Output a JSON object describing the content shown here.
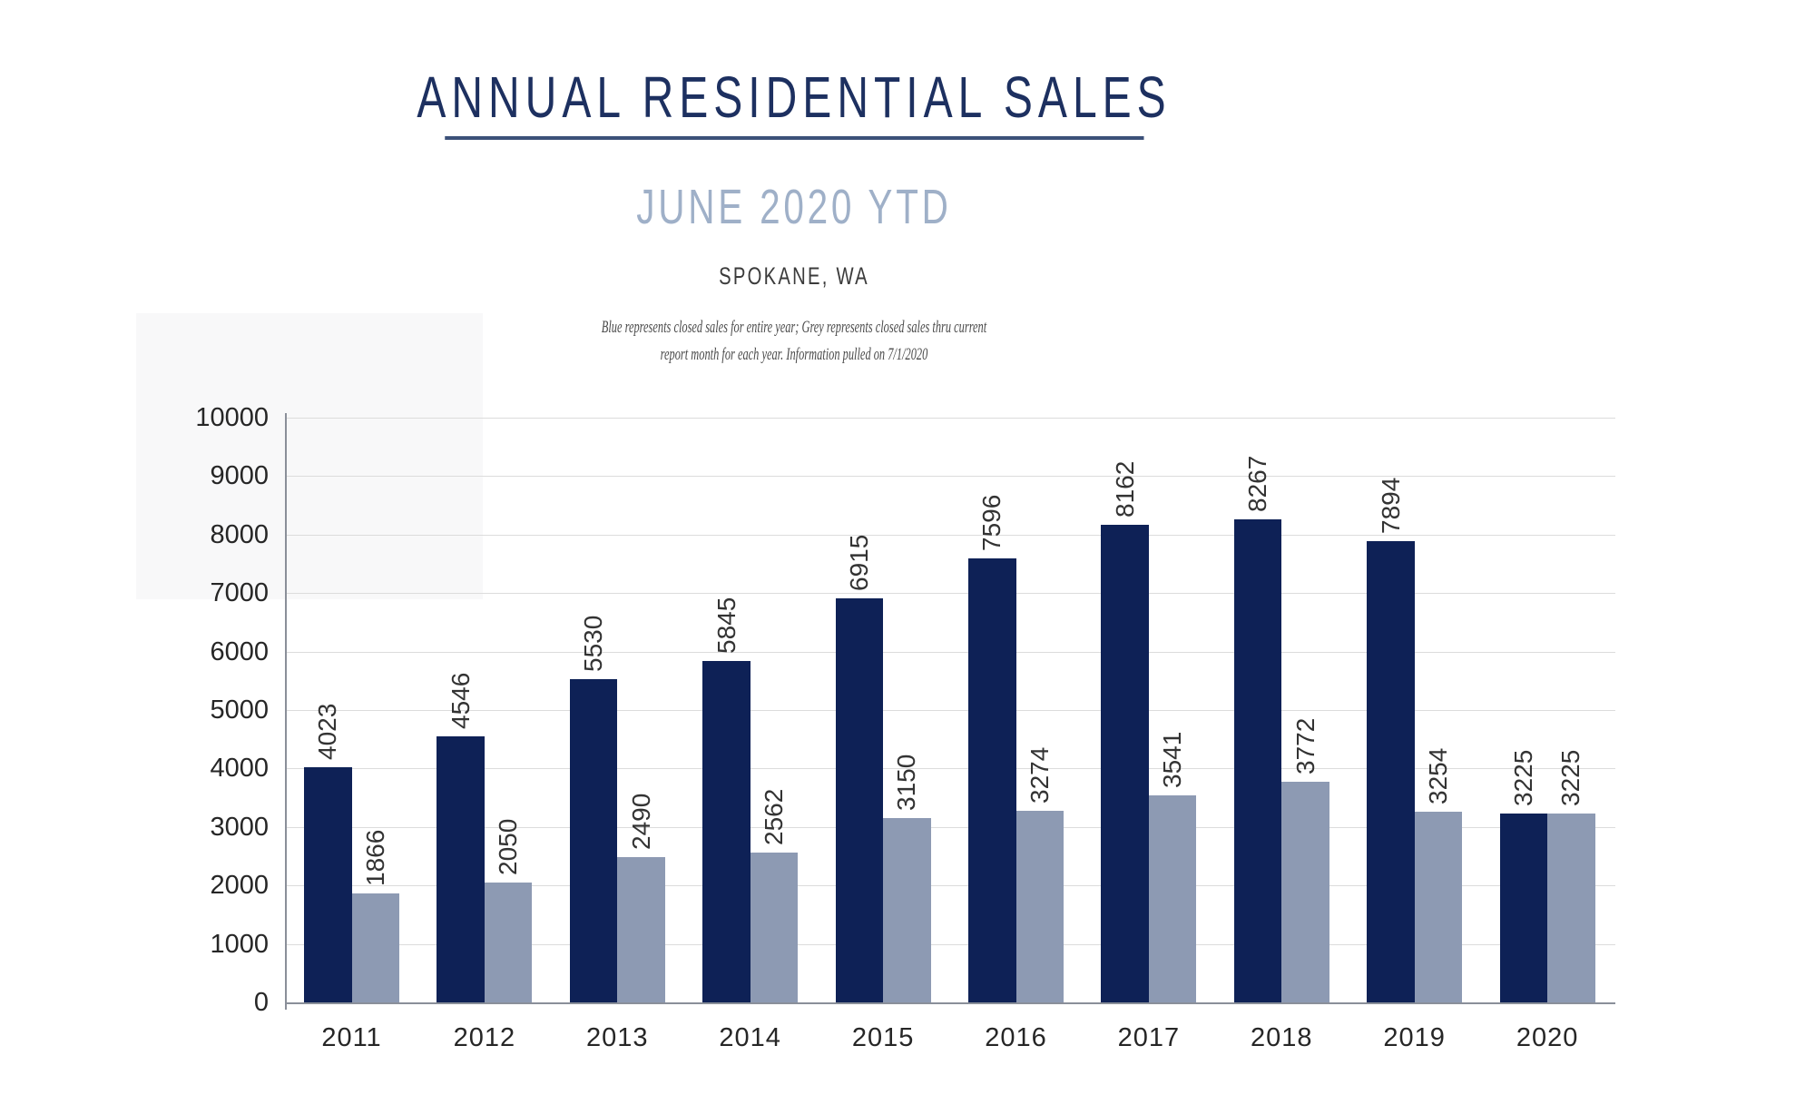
{
  "header": {
    "title": "ANNUAL RESIDENTIAL SALES",
    "subtitle": "JUNE 2020 YTD",
    "location": "SPOKANE, WA",
    "note_line1": "Blue represents closed sales for entire year; Grey represents closed sales thru current",
    "note_line2": "report month for each year.  Information pulled on 7/1/2020"
  },
  "colors": {
    "title_navy": "#1d3060",
    "underline": "#3c5179",
    "subtitle_blue": "#9fb0c8",
    "location_text": "#3b3b3b",
    "note_text": "#4a4a4a",
    "bar_navy": "#0e2156",
    "bar_grey": "#8d9ab3",
    "gridline": "#dcdcdc",
    "axis_line": "#8a8f99",
    "tick_text": "#262626",
    "data_label_text": "#333333"
  },
  "chart_data": {
    "type": "bar",
    "title": "ANNUAL RESIDENTIAL SALES — JUNE 2020 YTD — SPOKANE, WA",
    "categories": [
      "2011",
      "2012",
      "2013",
      "2014",
      "2015",
      "2016",
      "2017",
      "2018",
      "2019",
      "2020"
    ],
    "series": [
      {
        "name": "Closed sales for entire year (blue)",
        "color_key": "bar_navy",
        "values": [
          4023,
          4546,
          5530,
          5845,
          6915,
          7596,
          8162,
          8267,
          7894,
          3225
        ]
      },
      {
        "name": "Closed sales thru current report month (grey)",
        "color_key": "bar_grey",
        "values": [
          1866,
          2050,
          2490,
          2562,
          3150,
          3274,
          3541,
          3772,
          3254,
          3225
        ]
      }
    ],
    "xlabel": "",
    "ylabel": "",
    "ylim": [
      0,
      10000
    ],
    "ytick_step": 1000,
    "grid": true,
    "legend_position": "none",
    "data_labels": "rotated 90° above each bar"
  }
}
